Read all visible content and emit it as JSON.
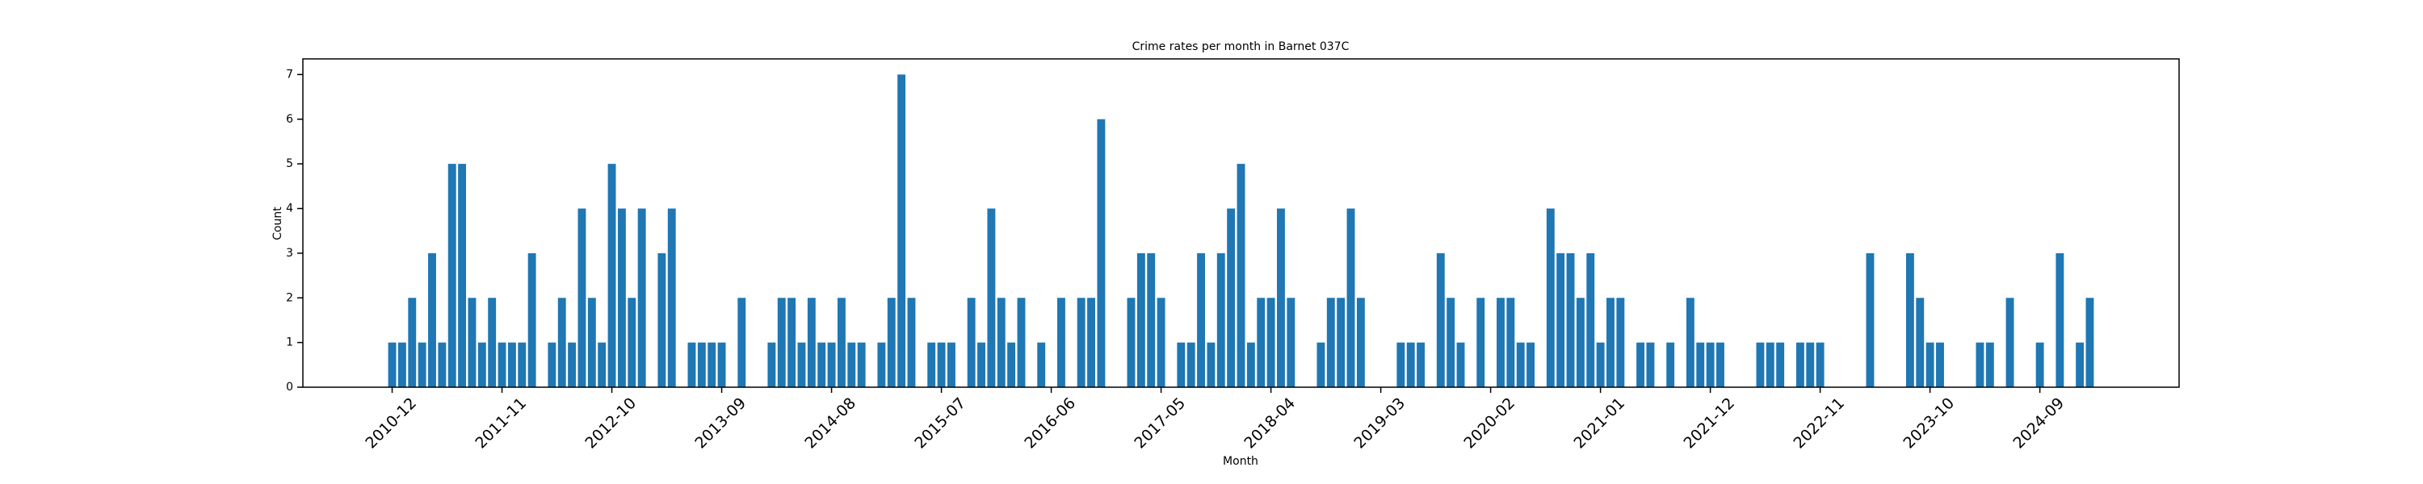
{
  "chart_data": {
    "type": "bar",
    "title": "Crime rates per month in Barnet 037C",
    "x_label": "Month",
    "y_label": "Count",
    "color": "#1f77b4",
    "categories": [
      "2010-12",
      null,
      null,
      null,
      null,
      null,
      null,
      null,
      null,
      null,
      null,
      "2011-11",
      null,
      null,
      null,
      null,
      null,
      null,
      null,
      null,
      null,
      null,
      "2012-10",
      null,
      null,
      null,
      null,
      null,
      null,
      null,
      null,
      null,
      null,
      "2013-09",
      null,
      null,
      null,
      null,
      null,
      null,
      null,
      null,
      null,
      null,
      "2014-08",
      null,
      null,
      null,
      null,
      null,
      null,
      null,
      null,
      null,
      null,
      "2015-07",
      null,
      null,
      null,
      null,
      null,
      null,
      null,
      null,
      null,
      null,
      "2016-06",
      null,
      null,
      null,
      null,
      null,
      null,
      null,
      null,
      null,
      null,
      "2017-05",
      null,
      null,
      null,
      null,
      null,
      null,
      null,
      null,
      null,
      null,
      "2018-04",
      null,
      null,
      null,
      null,
      null,
      null,
      null,
      null,
      null,
      null,
      "2019-03",
      null,
      null,
      null,
      null,
      null,
      null,
      null,
      null,
      null,
      null,
      "2020-02",
      null,
      null,
      null,
      null,
      null,
      null,
      null,
      null,
      null,
      null,
      "2021-01",
      null,
      null,
      null,
      null,
      null,
      null,
      null,
      null,
      null,
      null,
      "2021-12",
      null,
      null,
      null,
      null,
      null,
      null,
      null,
      null,
      null,
      null,
      "2022-11",
      null,
      null,
      null,
      null,
      null,
      null,
      null,
      null,
      null,
      null,
      "2023-10",
      null,
      null,
      null,
      null,
      null,
      null,
      null,
      null,
      null,
      null,
      "2024-09",
      null,
      null,
      null,
      null,
      null
    ],
    "values": [
      1,
      1,
      2,
      1,
      3,
      1,
      5,
      5,
      2,
      1,
      2,
      1,
      1,
      1,
      3,
      0,
      1,
      2,
      1,
      4,
      2,
      1,
      5,
      4,
      2,
      4,
      0,
      3,
      4,
      0,
      1,
      1,
      1,
      1,
      0,
      2,
      0,
      0,
      1,
      2,
      2,
      1,
      2,
      1,
      1,
      2,
      1,
      1,
      0,
      1,
      2,
      7,
      2,
      0,
      1,
      1,
      1,
      0,
      2,
      1,
      4,
      2,
      1,
      2,
      0,
      1,
      0,
      2,
      0,
      2,
      2,
      6,
      0,
      0,
      2,
      3,
      3,
      2,
      0,
      1,
      1,
      3,
      1,
      3,
      4,
      5,
      1,
      2,
      2,
      4,
      2,
      0,
      0,
      1,
      2,
      2,
      4,
      2,
      0,
      0,
      0,
      1,
      1,
      1,
      0,
      3,
      2,
      1,
      0,
      2,
      0,
      2,
      2,
      1,
      1,
      0,
      4,
      3,
      3,
      2,
      3,
      1,
      2,
      2,
      0,
      1,
      1,
      0,
      1,
      0,
      2,
      1,
      1,
      1,
      0,
      0,
      0,
      1,
      1,
      1,
      0,
      1,
      1,
      1,
      0,
      0,
      0,
      0,
      3,
      0,
      0,
      0,
      3,
      2,
      1,
      1,
      0,
      0,
      0,
      1,
      1,
      0,
      2,
      0,
      0,
      1,
      0,
      3,
      0,
      1,
      2
    ],
    "ylim": [
      0,
      7.35
    ],
    "yticks": [
      0,
      1,
      2,
      3,
      4,
      5,
      6,
      7
    ]
  }
}
